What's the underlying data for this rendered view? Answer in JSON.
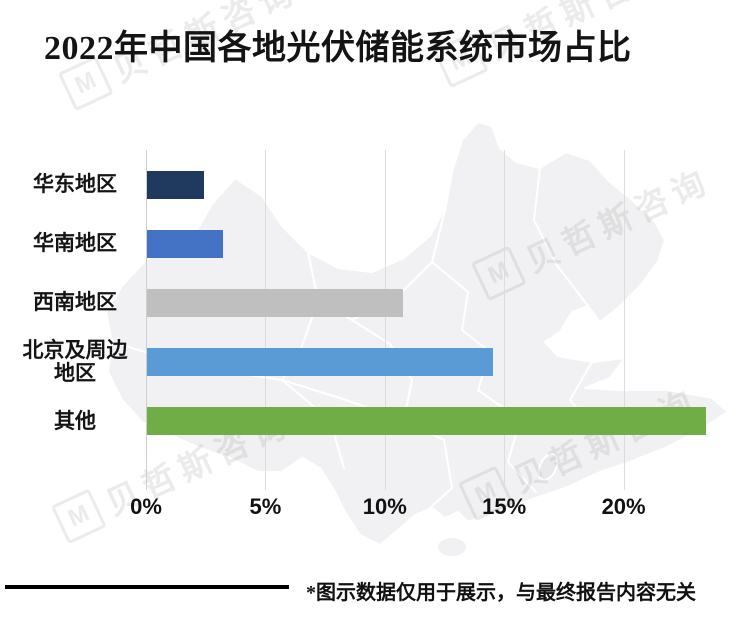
{
  "title": "2022年中国各地光伏储能系统市场占比",
  "footnote": "*图示数据仅用于展示，与最终报告内容无关",
  "watermark": {
    "logo_letter": "M",
    "text": "贝哲斯咨询"
  },
  "colors": {
    "background": "#ffffff",
    "map_fill": "#f1f1f3",
    "map_border": "#ffffff",
    "gridline": "#dcdcdc",
    "axis_line": "#cfcfcf",
    "text": "#141414",
    "footer_rule": "#000000"
  },
  "chart_data": {
    "type": "bar",
    "orientation": "horizontal",
    "title": "2022年中国各地光伏储能系统市场占比",
    "categories": [
      "华东地区",
      "华南地区",
      "西南地区",
      "北京及周边地区",
      "其他"
    ],
    "categories_display": [
      "华东地区",
      "华南地区",
      "西南地区",
      "北京及周边\n地区",
      "其他"
    ],
    "values": [
      2.4,
      3.2,
      10.7,
      14.5,
      23.4
    ],
    "unit": "%",
    "bar_colors": [
      "#20395E",
      "#4472C4",
      "#BFBFBF",
      "#5B9BD5",
      "#70AD47"
    ],
    "x_ticks": [
      0,
      5,
      10,
      15,
      20
    ],
    "x_tick_labels": [
      "0%",
      "5%",
      "10%",
      "15%",
      "20%"
    ],
    "xlim": [
      0,
      24.8
    ],
    "xlabel": "",
    "ylabel": "",
    "grid": "vertical-only",
    "legend": "none",
    "background_art": "china-map-silhouette"
  }
}
